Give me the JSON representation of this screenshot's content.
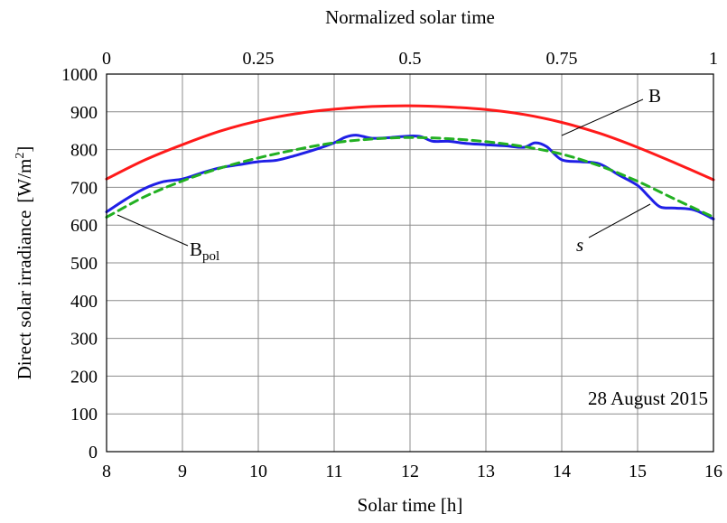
{
  "chart_data": {
    "type": "line",
    "xlabel": "Solar time [h]",
    "ylabel": "Direct solar irradiance",
    "ylabel_unit_prefix": "[W/m",
    "ylabel_unit_sup": "2",
    "ylabel_unit_suffix": "]",
    "top_xlabel": "Normalized solar time",
    "xlim": [
      8,
      16
    ],
    "ylim": [
      0,
      1000
    ],
    "x_ticks": [
      "8",
      "9",
      "10",
      "11",
      "12",
      "13",
      "14",
      "15",
      "16"
    ],
    "y_ticks": [
      "0",
      "100",
      "200",
      "300",
      "400",
      "500",
      "600",
      "700",
      "800",
      "900",
      "1000"
    ],
    "top_ticks": [
      "0",
      "0.25",
      "0.5",
      "0.75",
      "1"
    ],
    "grid": true,
    "annotation": "28 August 2015",
    "series": [
      {
        "name": "B",
        "color": "#ff1a1a",
        "dash": "solid",
        "x": [
          8,
          8.5,
          9,
          9.5,
          10,
          10.5,
          11,
          11.5,
          12,
          12.5,
          13,
          13.5,
          14,
          14.5,
          15,
          15.5,
          16
        ],
        "y": [
          722,
          772,
          813,
          849,
          876,
          895,
          907,
          914,
          916,
          913,
          906,
          893,
          872,
          843,
          806,
          764,
          720
        ]
      },
      {
        "name": "B",
        "name_sub": "pol",
        "color": "#22b022",
        "dash": "dashed",
        "x": [
          8,
          8.5,
          9,
          9.5,
          10,
          10.5,
          11,
          11.5,
          12,
          12.5,
          13,
          13.5,
          14,
          14.5,
          15,
          15.5,
          16
        ],
        "y": [
          621,
          675,
          717,
          751,
          778,
          800,
          818,
          828,
          832,
          829,
          821,
          808,
          788,
          757,
          716,
          668,
          621
        ]
      },
      {
        "name": "s",
        "color": "#1f1fe6",
        "dash": "solid",
        "x": [
          8,
          8.25,
          8.5,
          8.75,
          9,
          9.25,
          9.5,
          9.75,
          10,
          10.25,
          10.5,
          10.75,
          11,
          11.15,
          11.3,
          11.5,
          11.75,
          12,
          12.15,
          12.3,
          12.5,
          12.75,
          13,
          13.25,
          13.5,
          13.65,
          13.8,
          14,
          14.25,
          14.5,
          14.75,
          15,
          15.15,
          15.3,
          15.5,
          15.75,
          16
        ],
        "y": [
          635,
          668,
          697,
          715,
          722,
          738,
          752,
          760,
          768,
          772,
          785,
          800,
          818,
          833,
          838,
          830,
          832,
          836,
          834,
          822,
          822,
          816,
          813,
          810,
          806,
          818,
          808,
          773,
          768,
          762,
          733,
          705,
          675,
          648,
          645,
          640,
          616
        ]
      }
    ],
    "labels": {
      "B": "B",
      "Bpol_main": "B",
      "Bpol_sub": "pol",
      "s": "s"
    }
  }
}
